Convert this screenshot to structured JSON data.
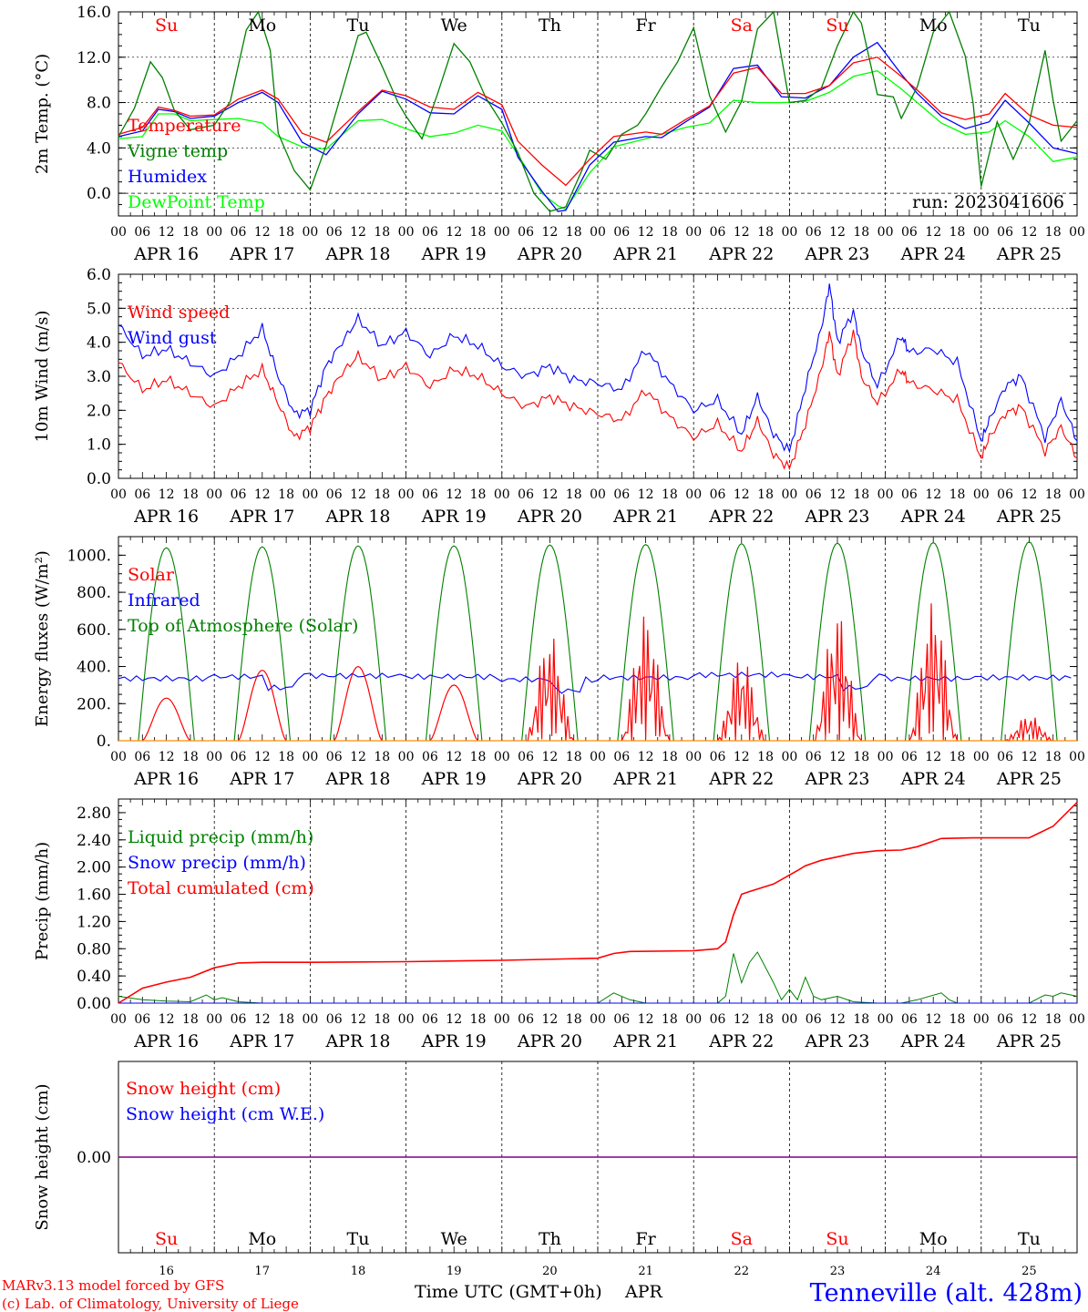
{
  "colors": {
    "red": "#ff0000",
    "blue": "#0000ff",
    "green": "#008000",
    "lightgreen": "#00ff00",
    "purple": "#800080",
    "black": "#000000"
  },
  "days": [
    "16",
    "17",
    "18",
    "19",
    "20",
    "21",
    "22",
    "23",
    "24",
    "25"
  ],
  "day_labels": [
    "APR 16",
    "APR 17",
    "APR 18",
    "APR 19",
    "APR 20",
    "APR 21",
    "APR 22",
    "APR 23",
    "APR 24",
    "APR 25"
  ],
  "weekdays": [
    "Su",
    "Mo",
    "Tu",
    "We",
    "Th",
    "Fr",
    "Sa",
    "Su",
    "Mo",
    "Tu"
  ],
  "weekday_colors": [
    "red",
    "black",
    "black",
    "black",
    "black",
    "black",
    "red",
    "red",
    "black",
    "black"
  ],
  "hour_ticks": [
    "00",
    "06",
    "12",
    "18"
  ],
  "hour_end": "00",
  "run_label": "run: 2023041606",
  "footer": {
    "model": "MARv3.13 model forced by GFS",
    "lab": "(c) Lab. of Climatology, University of Liege",
    "time_axis": "Time UTC (GMT+0h)",
    "month": "APR",
    "station": "Tenneville (alt. 428m)"
  },
  "chart_data": [
    {
      "type": "line",
      "ylabel": "2m Temp. (°C)",
      "ylim": [
        -2,
        16
      ],
      "yticks": [
        "0.0",
        "4.0",
        "8.0",
        "12.0",
        "16.0"
      ],
      "grid_y": [
        4,
        8,
        12
      ],
      "zero_dashed": true,
      "legend": "top-left",
      "x_unit": "hours since APR 16 00 UTC",
      "series": [
        {
          "name": "Temperature",
          "color": "red",
          "x": [
            0,
            6,
            10,
            14,
            18,
            24,
            30,
            36,
            40,
            46,
            52,
            60,
            66,
            72,
            78,
            84,
            90,
            96,
            100,
            106,
            112,
            118,
            124,
            132,
            136,
            142,
            148,
            154,
            160,
            166,
            172,
            178,
            184,
            190,
            196,
            200,
            206,
            212,
            218,
            222,
            228,
            234,
            240
          ],
          "y": [
            5.2,
            5.8,
            7.6,
            7.3,
            6.8,
            6.9,
            8.3,
            9.1,
            8.3,
            5.3,
            4.5,
            7.2,
            9.1,
            8.6,
            7.6,
            7.4,
            8.9,
            7.8,
            4.6,
            2.5,
            0.7,
            3.0,
            5.0,
            5.4,
            5.2,
            6.5,
            7.7,
            10.6,
            11.1,
            8.8,
            8.8,
            9.5,
            11.5,
            12.0,
            10.3,
            9.1,
            7.1,
            6.5,
            7.0,
            8.8,
            6.9,
            6.0,
            5.8
          ]
        },
        {
          "name": "Vigne temp",
          "color": "green",
          "x": [
            0,
            4,
            8,
            11,
            14,
            18,
            24,
            28,
            32,
            35,
            38,
            40,
            44,
            48,
            52,
            56,
            60,
            62,
            66,
            70,
            72,
            76,
            80,
            84,
            88,
            92,
            96,
            100,
            104,
            108,
            112,
            116,
            118,
            122,
            126,
            130,
            132,
            136,
            140,
            144,
            148,
            152,
            156,
            160,
            164,
            168,
            172,
            176,
            180,
            184,
            186,
            190,
            194,
            196,
            200,
            204,
            208,
            212,
            214,
            216,
            220,
            224,
            228,
            232,
            234,
            236,
            240
          ],
          "y": [
            5.0,
            7.5,
            11.6,
            10.2,
            7.3,
            5.6,
            6.0,
            8.1,
            14.4,
            16.0,
            12.6,
            5.3,
            2.0,
            0.3,
            4.2,
            9.0,
            13.9,
            14.2,
            11.2,
            8.0,
            6.8,
            4.8,
            8.9,
            13.2,
            11.6,
            8.4,
            6.2,
            3.6,
            0.0,
            -1.6,
            -1.2,
            2.0,
            3.8,
            3.0,
            5.2,
            6.0,
            7.0,
            9.4,
            11.6,
            14.6,
            8.6,
            5.4,
            8.1,
            14.5,
            16.0,
            8.0,
            8.2,
            9.3,
            13.0,
            16.0,
            15.0,
            8.7,
            8.5,
            6.6,
            9.4,
            14.2,
            16.0,
            12.1,
            7.9,
            0.6,
            6.3,
            3.0,
            6.2,
            12.6,
            8.2,
            4.6,
            6.4
          ]
        },
        {
          "name": "Humidex",
          "color": "blue",
          "x": [
            0,
            6,
            10,
            14,
            18,
            24,
            30,
            36,
            40,
            46,
            52,
            60,
            66,
            72,
            78,
            84,
            90,
            96,
            100,
            106,
            110,
            112,
            118,
            124,
            132,
            136,
            142,
            148,
            154,
            160,
            166,
            172,
            178,
            184,
            190,
            196,
            200,
            206,
            212,
            218,
            222,
            228,
            234,
            240
          ],
          "y": [
            5.0,
            5.5,
            7.4,
            7.2,
            6.6,
            6.8,
            8.0,
            8.9,
            8.0,
            4.5,
            3.4,
            7.0,
            9.0,
            8.3,
            7.1,
            7.0,
            8.6,
            7.4,
            3.2,
            0.2,
            -1.6,
            -1.5,
            2.5,
            4.5,
            5.0,
            4.9,
            6.3,
            7.6,
            11.0,
            11.3,
            8.5,
            8.4,
            9.5,
            12.0,
            13.3,
            10.5,
            8.8,
            6.8,
            5.7,
            6.3,
            8.2,
            6.2,
            4.0,
            3.5
          ]
        },
        {
          "name": "DewPoint Temp",
          "color": "lightgreen",
          "x": [
            0,
            6,
            10,
            14,
            18,
            24,
            30,
            36,
            40,
            46,
            52,
            60,
            66,
            72,
            78,
            84,
            90,
            96,
            100,
            106,
            110,
            112,
            118,
            124,
            132,
            136,
            142,
            148,
            154,
            160,
            166,
            172,
            178,
            184,
            190,
            196,
            200,
            206,
            212,
            218,
            222,
            228,
            234,
            240
          ],
          "y": [
            4.8,
            5.0,
            7.0,
            7.0,
            6.4,
            6.5,
            6.6,
            6.2,
            5.0,
            4.1,
            3.9,
            6.4,
            6.5,
            5.7,
            5.0,
            5.3,
            6.0,
            5.5,
            3.4,
            0.0,
            -1.1,
            -1.4,
            1.8,
            4.1,
            4.8,
            5.2,
            5.8,
            6.2,
            8.2,
            8.0,
            8.0,
            8.1,
            8.9,
            10.3,
            10.8,
            9.2,
            8.0,
            6.2,
            5.2,
            5.4,
            6.4,
            5.0,
            2.8,
            3.2
          ]
        }
      ]
    },
    {
      "type": "line",
      "ylabel": "10m Wind (m/s)",
      "ylim": [
        0,
        6
      ],
      "yticks": [
        "0.0",
        "1.0",
        "2.0",
        "3.0",
        "4.0",
        "5.0",
        "6.0"
      ],
      "grid_y": [
        5
      ],
      "legend": "top-left",
      "series": [
        {
          "name": "Wind speed",
          "color": "red",
          "x": [
            0,
            6,
            12,
            18,
            24,
            30,
            36,
            40,
            44,
            48,
            52,
            56,
            60,
            66,
            72,
            78,
            84,
            90,
            96,
            102,
            108,
            114,
            120,
            126,
            132,
            138,
            144,
            150,
            156,
            160,
            164,
            168,
            172,
            176,
            178,
            180,
            184,
            186,
            190,
            196,
            198,
            204,
            210,
            216,
            218,
            222,
            226,
            232,
            236,
            240
          ],
          "y": [
            3.4,
            2.6,
            2.9,
            2.5,
            2.1,
            2.7,
            3.2,
            2.2,
            1.2,
            1.5,
            2.4,
            3.1,
            3.6,
            2.9,
            3.3,
            2.7,
            3.2,
            3.0,
            2.5,
            2.1,
            2.4,
            2.1,
            1.9,
            1.7,
            2.6,
            1.8,
            1.2,
            1.6,
            0.8,
            1.7,
            0.7,
            0.3,
            1.6,
            3.2,
            4.3,
            3.0,
            4.3,
            3.0,
            2.2,
            3.2,
            2.8,
            2.6,
            2.3,
            0.6,
            1.2,
            1.9,
            2.1,
            0.8,
            1.5,
            0.6
          ]
        },
        {
          "name": "Wind gust",
          "color": "blue",
          "x": [
            0,
            6,
            12,
            18,
            24,
            30,
            36,
            40,
            44,
            48,
            52,
            56,
            60,
            66,
            72,
            78,
            84,
            90,
            96,
            102,
            108,
            114,
            120,
            126,
            132,
            138,
            144,
            150,
            156,
            160,
            164,
            168,
            172,
            176,
            178,
            180,
            184,
            186,
            190,
            196,
            198,
            204,
            210,
            216,
            218,
            222,
            226,
            232,
            236,
            240
          ],
          "y": [
            4.5,
            3.6,
            3.8,
            3.4,
            3.0,
            3.6,
            4.4,
            3.0,
            1.9,
            2.0,
            3.3,
            4.0,
            4.7,
            3.9,
            4.3,
            3.6,
            4.2,
            3.9,
            3.3,
            3.0,
            3.3,
            2.9,
            2.8,
            2.6,
            3.8,
            2.8,
            2.0,
            2.3,
            1.3,
            2.4,
            1.3,
            0.8,
            2.7,
            4.4,
            5.7,
            4.0,
            4.9,
            3.8,
            2.7,
            4.2,
            3.7,
            3.8,
            3.4,
            1.1,
            1.7,
            2.7,
            3.0,
            1.2,
            2.3,
            1.1
          ]
        }
      ]
    },
    {
      "type": "line",
      "ylabel": "Energy fluxes (W/m²)",
      "ylim": [
        0,
        1100
      ],
      "yticks": [
        "0.",
        "200.",
        "400.",
        "600.",
        "800.",
        "1000."
      ],
      "legend": "top-left",
      "series": [
        {
          "name": "Solar",
          "color": "red",
          "peaks": [
            230,
            380,
            400,
            300,
            580,
            690,
            460,
            700,
            750,
            140
          ]
        },
        {
          "name": "Infrared",
          "color": "blue",
          "base": [
            335,
            345,
            350,
            345,
            330,
            340,
            355,
            345,
            335,
            340
          ]
        },
        {
          "name": "Top of Atmosphere (Solar)",
          "color": "green",
          "peaks": [
            1040,
            1045,
            1050,
            1050,
            1055,
            1058,
            1062,
            1065,
            1068,
            1072
          ]
        }
      ]
    },
    {
      "type": "line",
      "ylabel": "Precip (mm/h)",
      "ylim": [
        0,
        3.0
      ],
      "yticks": [
        "0.00",
        "0.40",
        "0.80",
        "1.20",
        "1.60",
        "2.00",
        "2.40",
        "2.80"
      ],
      "legend": "top-left",
      "series": [
        {
          "name": "Liquid precip (mm/h)",
          "color": "green",
          "x": [
            0,
            6,
            12,
            18,
            22,
            24,
            26,
            30,
            36,
            48,
            60,
            72,
            84,
            96,
            108,
            118,
            120,
            124,
            128,
            132,
            136,
            144,
            150,
            152,
            154,
            156,
            158,
            160,
            164,
            166,
            168,
            170,
            172,
            174,
            176,
            180,
            184,
            190,
            196,
            200,
            206,
            208,
            210,
            216,
            228,
            232,
            234,
            236,
            240
          ],
          "y": [
            0.1,
            0.05,
            0.03,
            0.02,
            0.12,
            0.05,
            0.08,
            0.02,
            0.0,
            0.0,
            0.0,
            0.0,
            0.0,
            0.0,
            0.0,
            0.0,
            0.0,
            0.15,
            0.05,
            0.0,
            0.0,
            0.0,
            0.0,
            0.1,
            0.73,
            0.3,
            0.6,
            0.75,
            0.3,
            0.05,
            0.2,
            0.05,
            0.38,
            0.1,
            0.05,
            0.1,
            0.02,
            0.0,
            0.0,
            0.05,
            0.15,
            0.05,
            0.0,
            0.0,
            0.0,
            0.12,
            0.1,
            0.15,
            0.1
          ]
        },
        {
          "name": "Snow precip (mm/h)",
          "color": "blue",
          "x": [
            0,
            240
          ],
          "y": [
            0.0,
            0.0
          ]
        },
        {
          "name": "Total cumulated (cm)",
          "color": "red",
          "x": [
            0,
            6,
            12,
            18,
            24,
            30,
            36,
            48,
            72,
            96,
            120,
            124,
            128,
            144,
            150,
            152,
            154,
            156,
            158,
            164,
            170,
            172,
            176,
            184,
            190,
            196,
            200,
            206,
            214,
            220,
            228,
            234,
            240
          ],
          "y": [
            0.0,
            0.22,
            0.31,
            0.38,
            0.52,
            0.59,
            0.6,
            0.6,
            0.61,
            0.63,
            0.66,
            0.73,
            0.76,
            0.77,
            0.8,
            0.9,
            1.3,
            1.6,
            1.64,
            1.75,
            1.95,
            2.02,
            2.1,
            2.2,
            2.24,
            2.25,
            2.3,
            2.42,
            2.43,
            2.43,
            2.43,
            2.6,
            2.95
          ]
        }
      ]
    },
    {
      "type": "line",
      "ylabel": "Snow height (cm)",
      "yticks": [
        "0.00"
      ],
      "legend": "top-left",
      "series": [
        {
          "name": "Snow height (cm)",
          "color": "red",
          "x": [
            0,
            240
          ],
          "y": [
            0.0,
            0.0
          ]
        },
        {
          "name": "Snow height (cm W.E.)",
          "color": "blue",
          "x": [
            0,
            240
          ],
          "y": [
            0.0,
            0.0
          ]
        }
      ]
    }
  ]
}
